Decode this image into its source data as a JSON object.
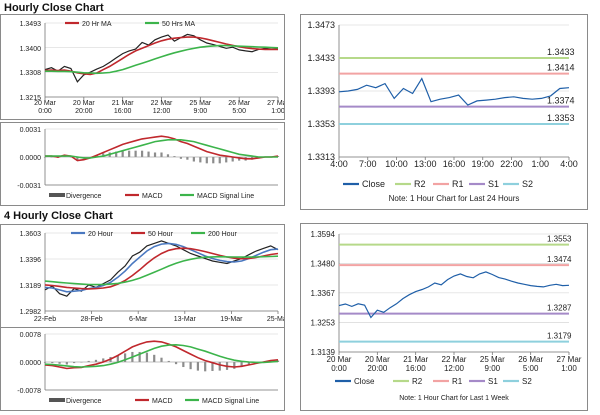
{
  "sections": {
    "hourly_title": "Hourly Close Chart",
    "four_hourly_title": "4 Hourly Close Chart"
  },
  "chart_data": [
    {
      "id": "hourly-price",
      "type": "line",
      "title": "Hourly Close Chart",
      "ylim": [
        1.3215,
        1.3493
      ],
      "yticks": [
        "1.3493",
        "1.3400",
        "1.3308",
        "1.3215"
      ],
      "ytick_values": [
        1.3493,
        1.34,
        1.3308,
        1.3215
      ],
      "xticks": [
        "20 Mar\n0:00",
        "20 Mar\n20:00",
        "21 Mar\n16:00",
        "22 Mar\n12:00",
        "25 Mar\n9:00",
        "26 Mar\n5:00",
        "27 Mar\n1:00"
      ],
      "legend": [
        "20 Hr MA",
        "50 Hrs MA"
      ],
      "legend_colors": [
        "#c0282d",
        "#3cb44b"
      ],
      "series": [
        {
          "name": "Close",
          "color": "#222222",
          "values": [
            1.3318,
            1.3325,
            1.3312,
            1.333,
            1.3322,
            1.3272,
            1.3298,
            1.3308,
            1.332,
            1.333,
            1.3345,
            1.3362,
            1.3378,
            1.3388,
            1.3395,
            1.342,
            1.341,
            1.343,
            1.344,
            1.3448,
            1.3425,
            1.3438,
            1.345,
            1.3445,
            1.343,
            1.3418,
            1.3412,
            1.3405,
            1.3398,
            1.3402,
            1.3392,
            1.3388,
            1.3385,
            1.3394,
            1.3398,
            1.3395,
            1.3396
          ]
        },
        {
          "name": "20 Hr MA",
          "color": "#c0282d",
          "values": [
            1.3315,
            1.3316,
            1.3314,
            1.3316,
            1.3312,
            1.3306,
            1.3302,
            1.33,
            1.3305,
            1.3318,
            1.333,
            1.3345,
            1.336,
            1.3375,
            1.3388,
            1.3398,
            1.3408,
            1.3418,
            1.3426,
            1.3432,
            1.3436,
            1.3438,
            1.344,
            1.344,
            1.3437,
            1.3432,
            1.3426,
            1.342,
            1.3414,
            1.3409,
            1.3404,
            1.34,
            1.3397,
            1.3395,
            1.3394,
            1.3394,
            1.3394
          ]
        },
        {
          "name": "50 Hrs MA",
          "color": "#3cb44b",
          "values": [
            1.3312,
            1.3312,
            1.3311,
            1.3311,
            1.331,
            1.3308,
            1.3306,
            1.3305,
            1.3304,
            1.3305,
            1.3307,
            1.3312,
            1.3318,
            1.3326,
            1.3334,
            1.3342,
            1.335,
            1.3358,
            1.3366,
            1.3374,
            1.3381,
            1.3387,
            1.3393,
            1.3398,
            1.3402,
            1.3405,
            1.3407,
            1.3408,
            1.3408,
            1.3407,
            1.3406,
            1.3405,
            1.3404,
            1.3403,
            1.3402,
            1.3401,
            1.34
          ]
        }
      ]
    },
    {
      "id": "hourly-macd",
      "type": "line",
      "ylim": [
        -0.0031,
        0.0031
      ],
      "yticks": [
        "0.0031",
        "0.0000",
        "-0.0031"
      ],
      "ytick_values": [
        0.0031,
        0.0,
        -0.0031
      ],
      "legend": [
        "Divergence",
        "MACD",
        "MACD Signal Line"
      ],
      "legend_colors": [
        "#555555",
        "#c0282d",
        "#3cb44b"
      ],
      "series": [
        {
          "name": "MACD",
          "color": "#c0282d",
          "values": [
            0.0001,
            0.0001,
            0.0,
            0.0002,
            0.0001,
            -0.0004,
            -0.0003,
            -0.0001,
            0.0002,
            0.0005,
            0.0008,
            0.0011,
            0.0014,
            0.0016,
            0.0018,
            0.002,
            0.0021,
            0.0022,
            0.0023,
            0.0022,
            0.002,
            0.0017,
            0.0015,
            0.0012,
            0.0009,
            0.0006,
            0.0004,
            0.0002,
            0.0001,
            0.0,
            -0.0001,
            -0.0002,
            -0.0002,
            -0.0001,
            0.0,
            0.0,
            0.0001
          ]
        },
        {
          "name": "MACD Signal Line",
          "color": "#3cb44b",
          "values": [
            0.0001,
            0.0001,
            0.0001,
            0.0001,
            0.0001,
            0.0,
            -0.0001,
            -0.0001,
            0.0,
            0.0001,
            0.0003,
            0.0005,
            0.0007,
            0.0009,
            0.0011,
            0.0013,
            0.0015,
            0.0017,
            0.0018,
            0.0019,
            0.0019,
            0.0019,
            0.0018,
            0.0017,
            0.0015,
            0.0013,
            0.0011,
            0.0009,
            0.0007,
            0.0005,
            0.0003,
            0.0002,
            0.0001,
            0.0,
            0.0,
            0.0,
            0.0
          ]
        },
        {
          "name": "Divergence",
          "color": "#555555",
          "type": "bar",
          "values": [
            0.0,
            0.0,
            -0.0001,
            0.0001,
            0.0,
            -0.0004,
            -0.0002,
            0.0,
            0.0002,
            0.0004,
            0.0005,
            0.0006,
            0.0007,
            0.0007,
            0.0007,
            0.0007,
            0.0006,
            0.0005,
            0.0005,
            0.0003,
            0.0001,
            -0.0002,
            -0.0003,
            -0.0005,
            -0.0006,
            -0.0007,
            -0.0007,
            -0.0007,
            -0.0006,
            -0.0005,
            -0.0004,
            -0.0004,
            -0.0003,
            -0.0001,
            0.0,
            0.0,
            0.0001
          ]
        }
      ]
    },
    {
      "id": "hourly-24h",
      "type": "line",
      "ylim": [
        1.3313,
        1.3473
      ],
      "yticks": [
        "1.3473",
        "1.3433",
        "1.3393",
        "1.3353",
        "1.3313"
      ],
      "ytick_values": [
        1.3473,
        1.3433,
        1.3393,
        1.3353,
        1.3313
      ],
      "xticks": [
        "4:00",
        "7:00",
        "10:00",
        "13:00",
        "16:00",
        "19:00",
        "22:00",
        "1:00",
        "4:00"
      ],
      "legend": [
        "Close",
        "R2",
        "R1",
        "S1",
        "S2"
      ],
      "legend_colors": [
        "#1f5fa8",
        "#b6d98a",
        "#f2a3a3",
        "#a58ac8",
        "#8ed0dd"
      ],
      "note": "Note: 1 Hour Chart for Last 24 Hours",
      "levels": [
        {
          "name": "R2",
          "value": 1.3433,
          "label": "1.3433",
          "color": "#b6d98a"
        },
        {
          "name": "R1",
          "value": 1.3414,
          "label": "1.3414",
          "color": "#f2a3a3"
        },
        {
          "name": "S1",
          "value": 1.3374,
          "label": "1.3374",
          "color": "#a58ac8"
        },
        {
          "name": "S2",
          "value": 1.3353,
          "label": "1.3353",
          "color": "#8ed0dd"
        }
      ],
      "series": [
        {
          "name": "Close",
          "color": "#1f5fa8",
          "values": [
            1.3392,
            1.3393,
            1.3395,
            1.34,
            1.3397,
            1.3402,
            1.3384,
            1.3396,
            1.339,
            1.3408,
            1.338,
            1.3383,
            1.3385,
            1.3388,
            1.3376,
            1.3381,
            1.3382,
            1.3383,
            1.3385,
            1.3386,
            1.3384,
            1.3383,
            1.3384,
            1.3387,
            1.3396,
            1.3397
          ]
        }
      ]
    },
    {
      "id": "four-hourly-price",
      "type": "line",
      "title": "4 Hourly Close Chart",
      "ylim": [
        1.2982,
        1.3603
      ],
      "yticks": [
        "1.3603",
        "1.3396",
        "1.3189",
        "1.2982"
      ],
      "ytick_values": [
        1.3603,
        1.3396,
        1.3189,
        1.2982
      ],
      "xticks": [
        "22-Feb",
        "28-Feb",
        "6-Mar",
        "13-Mar",
        "19-Mar",
        "25-Mar"
      ],
      "legend": [
        "20 Hour",
        "50 Hour",
        "200 Hour"
      ],
      "legend_colors": [
        "#4a78c0",
        "#c0282d",
        "#3cb44b"
      ],
      "series": [
        {
          "name": "Close",
          "color": "#222222",
          "values": [
            1.315,
            1.318,
            1.312,
            1.31,
            1.316,
            1.314,
            1.319,
            1.317,
            1.32,
            1.323,
            1.329,
            1.334,
            1.342,
            1.345,
            1.35,
            1.352,
            1.354,
            1.352,
            1.35,
            1.347,
            1.344,
            1.342,
            1.34,
            1.338,
            1.337,
            1.336,
            1.338,
            1.34,
            1.343,
            1.346,
            1.348,
            1.35,
            1.347
          ]
        },
        {
          "name": "20 Hour",
          "color": "#4a78c0",
          "values": [
            1.317,
            1.3165,
            1.315,
            1.3135,
            1.314,
            1.3145,
            1.316,
            1.317,
            1.3185,
            1.321,
            1.325,
            1.33,
            1.336,
            1.341,
            1.346,
            1.3495,
            1.3515,
            1.352,
            1.3512,
            1.3495,
            1.347,
            1.3445,
            1.342,
            1.34,
            1.3385,
            1.3375,
            1.3372,
            1.338,
            1.34,
            1.3425,
            1.345,
            1.347,
            1.3475
          ]
        },
        {
          "name": "50 Hour",
          "color": "#c0282d",
          "values": [
            1.319,
            1.3185,
            1.3178,
            1.317,
            1.3165,
            1.316,
            1.3158,
            1.316,
            1.3165,
            1.3175,
            1.3195,
            1.3225,
            1.3265,
            1.331,
            1.336,
            1.3405,
            1.344,
            1.3465,
            1.3478,
            1.3482,
            1.3478,
            1.3468,
            1.3455,
            1.344,
            1.3425,
            1.3412,
            1.3402,
            1.3398,
            1.34,
            1.3408,
            1.342,
            1.3432,
            1.344
          ]
        },
        {
          "name": "200 Hour",
          "color": "#3cb44b",
          "values": [
            1.322,
            1.3215,
            1.321,
            1.3205,
            1.32,
            1.3196,
            1.3193,
            1.3192,
            1.3193,
            1.3196,
            1.3202,
            1.3212,
            1.3226,
            1.3244,
            1.3266,
            1.329,
            1.3315,
            1.334,
            1.3362,
            1.338,
            1.3394,
            1.3404,
            1.341,
            1.3413,
            1.3414,
            1.3413,
            1.3412,
            1.3411,
            1.3411,
            1.3412,
            1.3414,
            1.3416,
            1.3418
          ]
        }
      ]
    },
    {
      "id": "four-hourly-macd",
      "type": "line",
      "ylim": [
        -0.0078,
        0.0078
      ],
      "yticks": [
        "0.0078",
        "0.0000",
        "-0.0078"
      ],
      "ytick_values": [
        0.0078,
        0.0,
        -0.0078
      ],
      "legend": [
        "Divergence",
        "MACD",
        "MACD Signal Line"
      ],
      "legend_colors": [
        "#555555",
        "#c0282d",
        "#3cb44b"
      ],
      "series": [
        {
          "name": "MACD",
          "color": "#c0282d",
          "values": [
            -0.0008,
            -0.001,
            -0.0014,
            -0.0018,
            -0.0016,
            -0.0015,
            -0.001,
            -0.0006,
            0.0,
            0.0008,
            0.0018,
            0.003,
            0.0042,
            0.005,
            0.0056,
            0.0058,
            0.0056,
            0.005,
            0.0042,
            0.0032,
            0.0022,
            0.0012,
            0.0004,
            -0.0002,
            -0.0008,
            -0.0012,
            -0.0014,
            -0.0012,
            -0.0008,
            -0.0004,
            0.0,
            0.0004,
            0.0006
          ]
        },
        {
          "name": "MACD Signal Line",
          "color": "#3cb44b",
          "values": [
            -0.0006,
            -0.0007,
            -0.0009,
            -0.0011,
            -0.0013,
            -0.0014,
            -0.0013,
            -0.0012,
            -0.001,
            -0.0006,
            -0.0001,
            0.0006,
            0.0014,
            0.0022,
            0.003,
            0.0038,
            0.0044,
            0.0047,
            0.0048,
            0.0046,
            0.0042,
            0.0036,
            0.003,
            0.0023,
            0.0016,
            0.001,
            0.0005,
            0.0002,
            0.0,
            -0.0001,
            -0.0001,
            0.0,
            0.0002
          ]
        },
        {
          "name": "Divergence",
          "color": "#555555",
          "type": "bar",
          "values": [
            -0.0002,
            -0.0003,
            -0.0005,
            -0.0007,
            -0.0003,
            -0.0001,
            0.0003,
            0.0006,
            0.001,
            0.0014,
            0.0019,
            0.0024,
            0.0028,
            0.0028,
            0.0026,
            0.002,
            0.0012,
            0.0003,
            -0.0006,
            -0.0014,
            -0.002,
            -0.0024,
            -0.0026,
            -0.0025,
            -0.0024,
            -0.0022,
            -0.0019,
            -0.0014,
            -0.0008,
            -0.0003,
            0.0001,
            0.0004,
            0.0004
          ]
        }
      ]
    },
    {
      "id": "four-hourly-week",
      "type": "line",
      "ylim": [
        1.3139,
        1.3594
      ],
      "yticks": [
        "1.3594",
        "1.3480",
        "1.3367",
        "1.3253",
        "1.3139"
      ],
      "ytick_values": [
        1.3594,
        1.348,
        1.3367,
        1.3253,
        1.3139
      ],
      "xticks": [
        "20 Mar\n0:00",
        "20 Mar\n20:00",
        "21 Mar\n16:00",
        "22 Mar\n12:00",
        "25 Mar\n9:00",
        "26 Mar\n5:00",
        "27 Mar\n1:00"
      ],
      "legend": [
        "Close",
        "R2",
        "R1",
        "S1",
        "S2"
      ],
      "legend_colors": [
        "#1f5fa8",
        "#b6d98a",
        "#f2a3a3",
        "#a58ac8",
        "#8ed0dd"
      ],
      "note": "Note: 1 Hour Chart for Last 1 Week",
      "levels": [
        {
          "name": "R2",
          "value": 1.3553,
          "label": "1.3553",
          "color": "#b6d98a"
        },
        {
          "name": "R1",
          "value": 1.3474,
          "label": "1.3474",
          "color": "#f2a3a3"
        },
        {
          "name": "S1",
          "value": 1.3287,
          "label": "1.3287",
          "color": "#a58ac8"
        },
        {
          "name": "S2",
          "value": 1.3179,
          "label": "1.3179",
          "color": "#8ed0dd"
        }
      ],
      "series": [
        {
          "name": "Close",
          "color": "#1f5fa8",
          "values": [
            1.3318,
            1.3324,
            1.3315,
            1.3325,
            1.332,
            1.3272,
            1.33,
            1.3292,
            1.331,
            1.3325,
            1.3345,
            1.336,
            1.3372,
            1.338,
            1.339,
            1.3405,
            1.3398,
            1.3418,
            1.3432,
            1.344,
            1.343,
            1.3425,
            1.344,
            1.3448,
            1.3438,
            1.3426,
            1.342,
            1.3412,
            1.3405,
            1.34,
            1.3395,
            1.3392,
            1.339,
            1.3396,
            1.34,
            1.3395,
            1.3396
          ]
        }
      ]
    }
  ]
}
